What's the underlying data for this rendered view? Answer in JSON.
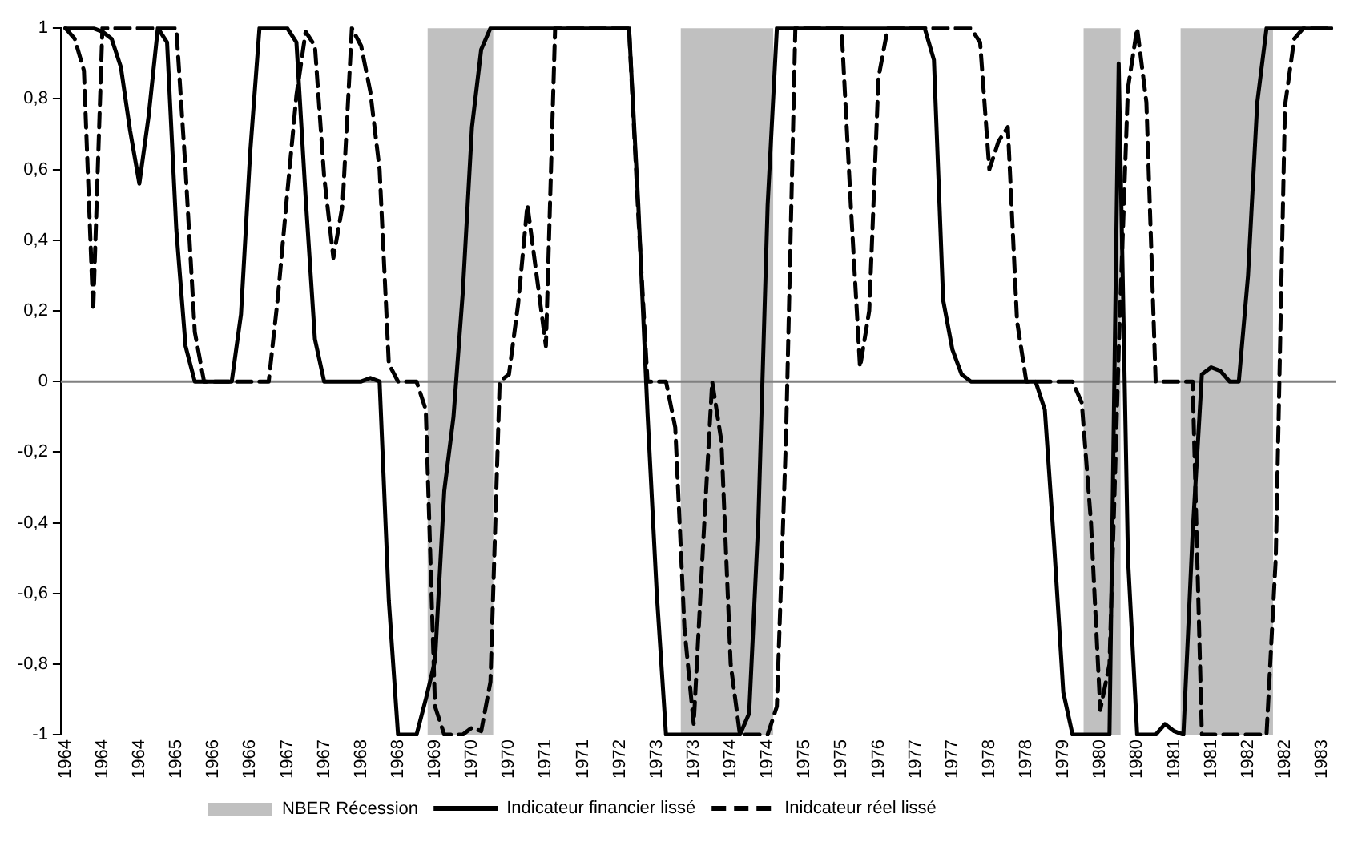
{
  "chart_data": {
    "type": "line",
    "categories": [
      "1964",
      null,
      null,
      null,
      "1964",
      null,
      null,
      null,
      "1964",
      null,
      null,
      null,
      "1965",
      null,
      null,
      null,
      "1966",
      null,
      null,
      null,
      "1966",
      null,
      null,
      null,
      "1967",
      null,
      null,
      null,
      "1967",
      null,
      null,
      null,
      "1968",
      null,
      null,
      null,
      "1968",
      null,
      null,
      null,
      "1969",
      null,
      null,
      null,
      "1970",
      null,
      null,
      null,
      "1970",
      null,
      null,
      null,
      "1971",
      null,
      null,
      null,
      "1971",
      null,
      null,
      null,
      "1972",
      null,
      null,
      null,
      "1973",
      null,
      null,
      null,
      "1973",
      null,
      null,
      null,
      "1974",
      null,
      null,
      null,
      "1974",
      null,
      null,
      null,
      "1975",
      null,
      null,
      null,
      "1975",
      null,
      null,
      null,
      "1976",
      null,
      null,
      null,
      "1977",
      null,
      null,
      null,
      "1977",
      null,
      null,
      null,
      "1978",
      null,
      null,
      null,
      "1978",
      null,
      null,
      null,
      "1979",
      null,
      null,
      null,
      "1980",
      null,
      null,
      null,
      "1980",
      null,
      null,
      null,
      "1981",
      null,
      null,
      null,
      "1981",
      null,
      null,
      null,
      "1982",
      null,
      null,
      null,
      "1982",
      null,
      null,
      null,
      "1983",
      null
    ],
    "ylim": [
      -1,
      1
    ],
    "yticks": [
      {
        "value": -1,
        "label": "-1"
      },
      {
        "value": -0.8,
        "label": "-0,8"
      },
      {
        "value": -0.6,
        "label": "-0,6"
      },
      {
        "value": -0.4,
        "label": "-0,4"
      },
      {
        "value": -0.2,
        "label": "-0,2"
      },
      {
        "value": 0,
        "label": "0"
      },
      {
        "value": 0.2,
        "label": "0,2"
      },
      {
        "value": 0.4,
        "label": "0,4"
      },
      {
        "value": 0.6,
        "label": "0,6"
      },
      {
        "value": 0.8,
        "label": "0,8"
      },
      {
        "value": 1,
        "label": "1"
      }
    ],
    "legend": "bottom",
    "annotations": [
      "NBER Récession"
    ],
    "ref_lines": [
      {
        "axis": "y",
        "value": 0,
        "color": "#808080"
      }
    ],
    "series": [
      {
        "name": "Indicateur financier lissé",
        "color": "#000000",
        "line_style": "solid",
        "values": [
          1,
          1,
          1,
          1,
          0.99,
          0.97,
          0.89,
          0.71,
          0.56,
          0.75,
          1,
          0.96,
          0.43,
          0.1,
          0,
          0,
          0,
          0,
          0,
          0.19,
          0.65,
          1,
          1,
          1,
          1,
          0.96,
          0.52,
          0.12,
          0,
          0,
          0,
          0,
          0,
          0.01,
          0,
          -0.62,
          -1,
          -1,
          -1,
          -0.9,
          -0.79,
          -0.31,
          -0.1,
          0.25,
          0.72,
          0.94,
          1,
          1,
          1,
          1,
          1,
          1,
          1,
          1,
          1,
          1,
          1,
          1,
          1,
          1,
          1,
          1,
          0.5,
          -0.09,
          -0.6,
          -1,
          -1,
          -1,
          -1,
          -1,
          -1,
          -1,
          -1,
          -1,
          -0.94,
          -0.39,
          0.5,
          1,
          1,
          1,
          1,
          1,
          1,
          1,
          1,
          1,
          1,
          1,
          1,
          1,
          1,
          1,
          1,
          1,
          0.91,
          0.23,
          0.09,
          0.02,
          0,
          0,
          0,
          0,
          0,
          0,
          0,
          0,
          -0.08,
          -0.46,
          -0.88,
          -1,
          -1,
          -1,
          -1,
          -1,
          0.9,
          -0.5,
          -1,
          -1,
          -1,
          -0.97,
          -0.99,
          -1,
          -0.43,
          0.02,
          0.04,
          0.03,
          0,
          0,
          0.3,
          0.79,
          1,
          1,
          1,
          1,
          1,
          1,
          1,
          1
        ]
      },
      {
        "name": "Inidcateur réel lissé",
        "color": "#000000",
        "line_style": "dashed",
        "values": [
          1,
          0.97,
          0.88,
          0.2,
          1,
          1,
          1,
          1,
          1,
          1,
          1,
          1,
          1,
          0.6,
          0.14,
          0,
          0,
          0,
          0,
          0,
          0,
          0,
          0,
          0.24,
          0.53,
          0.81,
          0.99,
          0.95,
          0.58,
          0.35,
          0.5,
          1,
          0.95,
          0.82,
          0.6,
          0.05,
          0,
          0,
          0,
          -0.08,
          -0.92,
          -1,
          -1,
          -1,
          -0.98,
          -0.99,
          -0.85,
          0,
          0.02,
          0.22,
          0.5,
          0.3,
          0.1,
          1,
          1,
          1,
          1,
          1,
          1,
          1,
          1,
          1,
          0.47,
          0,
          0,
          0,
          -0.13,
          -0.7,
          -0.97,
          -0.47,
          0,
          -0.17,
          -0.8,
          -1,
          -1,
          -1,
          -1,
          -0.92,
          -0.15,
          1,
          1,
          1,
          1,
          1,
          1,
          0.5,
          0.04,
          0.2,
          0.86,
          1,
          1,
          1,
          1,
          1,
          1,
          1,
          1,
          1,
          1,
          0.96,
          0.6,
          0.68,
          0.72,
          0.17,
          0,
          0,
          0,
          0,
          0,
          0,
          -0.06,
          -0.4,
          -0.93,
          -0.8,
          0.09,
          0.83,
          1,
          0.79,
          0,
          0,
          0,
          0,
          0,
          -1,
          -1,
          -1,
          -1,
          -1,
          -1,
          -1,
          -1,
          -0.5,
          0.78,
          0.97,
          1,
          1,
          1,
          1
        ]
      }
    ]
  }
}
